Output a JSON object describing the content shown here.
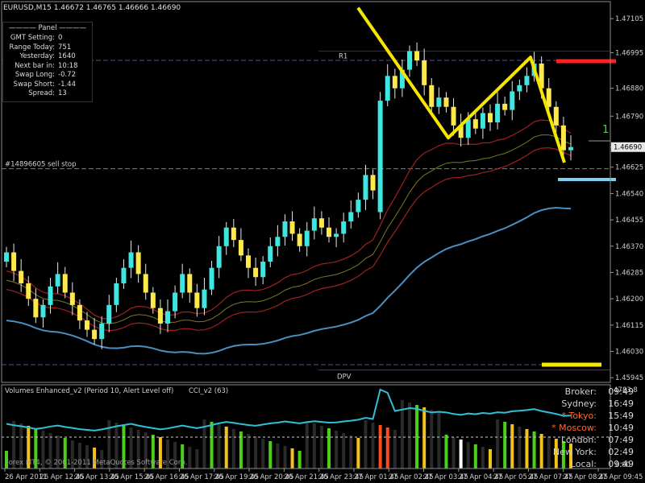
{
  "chart_title": "EURUSD,M15  1.46672 1.46765 1.46666 1.46690",
  "panel": {
    "title": "———— Panel ————",
    "rows": [
      {
        "key": "GMT Setting:",
        "value": "0"
      },
      {
        "key": "Range Today:",
        "value": "751"
      },
      {
        "key": "Yesterday:",
        "value": "1640"
      },
      {
        "key": "Next bar in:",
        "value": "10:18"
      },
      {
        "key": "Swap Long:",
        "value": "-0.72"
      },
      {
        "key": "Swap Short:",
        "value": "-1.44"
      },
      {
        "key": "Spread:",
        "value": "13"
      }
    ]
  },
  "labels": {
    "r1": "R1",
    "dpv": "DPV",
    "sell_stop": "#14896605 sell stop",
    "marker": "1",
    "current_price": "1.46690"
  },
  "subwindow": {
    "volumes_label": "Volumes Enhanced_v2  (Period 10, Alert Level off)",
    "cci_label": "CCI_v2  (63)",
    "scale_top": "4783.8",
    "scale_bottom": "0.00"
  },
  "clocks": [
    {
      "name": "Broker:",
      "time": "09:49",
      "color": "#d8d8d8"
    },
    {
      "name": "Sydney:",
      "time": "16:49",
      "color": "#d8d8d8"
    },
    {
      "name": "* Tokyo:",
      "time": "15:49",
      "color": "#ff6a2a"
    },
    {
      "name": "* Moscow:",
      "time": "10:49",
      "color": "#ff6a2a"
    },
    {
      "name": "London:",
      "time": "07:49",
      "color": "#d8d8d8"
    },
    {
      "name": "New York:",
      "time": "02:49",
      "color": "#d8d8d8"
    },
    {
      "name": "Local:",
      "time": "09:49",
      "color": "#d8d8d8"
    }
  ],
  "copyright": "Forex MT4, © 2001-2011 MetaQuotes Software Corp.",
  "colors": {
    "bull": "#3ee6e0",
    "bear": "#ffe84a",
    "zigzag": "#f5e600",
    "red_level": "#ff2020",
    "blue_level": "#7fd0f0",
    "yellow_level": "#f5e600",
    "ma_blue": "#4a8fc0",
    "ma_red": "#a02020",
    "ma_olive": "#7a7a20",
    "cci": "#2fc0d8"
  },
  "chart_data": {
    "type": "candlestick",
    "symbol": "EURUSD",
    "timeframe": "M15",
    "ohlc_header": {
      "open": 1.46672,
      "high": 1.46765,
      "low": 1.46666,
      "close": 1.4669
    },
    "y_ticks": [
      "1.47105",
      "1.46995",
      "1.46880",
      "1.46790",
      "1.46690",
      "1.46625",
      "1.46540",
      "1.46455",
      "1.46370",
      "1.46285",
      "1.46200",
      "1.46115",
      "1.46030",
      "1.45945"
    ],
    "y_range": [
      1.4593,
      1.4716
    ],
    "x_ticks": [
      "26 Apr 2011",
      "26 Apr 12:45",
      "26 Apr 13:45",
      "26 Apr 15:45",
      "26 Apr 16:45",
      "26 Apr 17:45",
      "26 Apr 19:45",
      "26 Apr 20:45",
      "26 Apr 21:45",
      "26 Apr 23:45",
      "27 Apr 01:45",
      "27 Apr 02:45",
      "27 Apr 03:45",
      "27 Apr 04:45",
      "27 Apr 05:45",
      "27 Apr 07:45",
      "27 Apr 08:45",
      "27 Apr 09:45"
    ],
    "levels": [
      {
        "name": "R1",
        "value": 1.47
      },
      {
        "name": "sell stop",
        "value": 1.4662
      },
      {
        "name": "DPV",
        "value": 1.4597
      }
    ],
    "zigzag": [
      1.4714,
      1.4672,
      1.4698,
      1.4664
    ],
    "close_approx": [
      1.4635,
      1.4629,
      1.4625,
      1.462,
      1.4614,
      1.4618,
      1.4624,
      1.4628,
      1.4622,
      1.4618,
      1.4613,
      1.461,
      1.4607,
      1.4612,
      1.4618,
      1.4625,
      1.463,
      1.4635,
      1.4628,
      1.4622,
      1.4617,
      1.4612,
      1.4616,
      1.4622,
      1.4628,
      1.4622,
      1.4617,
      1.4623,
      1.463,
      1.4637,
      1.4643,
      1.4639,
      1.4634,
      1.463,
      1.4627,
      1.4632,
      1.4637,
      1.464,
      1.4645,
      1.4641,
      1.4637,
      1.4642,
      1.4646,
      1.4643,
      1.464,
      1.4641,
      1.4645,
      1.4648,
      1.4652,
      1.466,
      1.4655,
      1.4684,
      1.4692,
      1.4688,
      1.4694,
      1.47,
      1.4697,
      1.4689,
      1.4682,
      1.4685,
      1.4682,
      1.4676,
      1.4672,
      1.4678,
      1.4675,
      1.468,
      1.4677,
      1.4683,
      1.4681,
      1.4687,
      1.4689,
      1.4692,
      1.4696,
      1.4688,
      1.4682,
      1.4676,
      1.4668,
      1.4669
    ]
  }
}
